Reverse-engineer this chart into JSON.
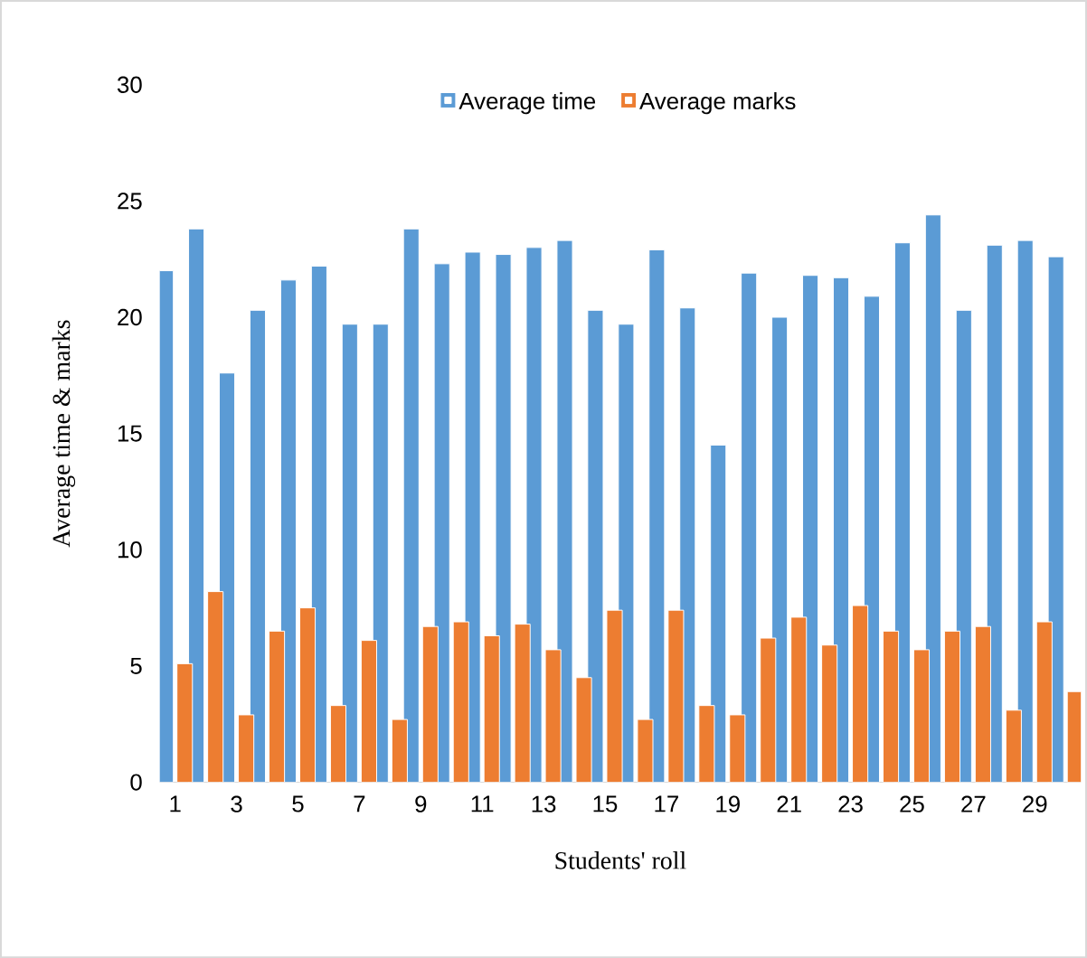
{
  "chart_data": {
    "type": "bar",
    "xlabel": "Students' roll",
    "ylabel": "Average time & marks",
    "categories": [
      "1",
      null,
      "3",
      null,
      "5",
      null,
      "7",
      null,
      "9",
      null,
      "11",
      null,
      "13",
      null,
      "15",
      null,
      "17",
      null,
      "19",
      null,
      "21",
      null,
      "23",
      null,
      "25",
      null,
      "27",
      null,
      "29",
      null
    ],
    "series": [
      {
        "name": "Average time",
        "color": "#5b9bd5",
        "values": [
          22.0,
          23.8,
          17.6,
          20.3,
          21.6,
          22.2,
          19.7,
          19.7,
          23.8,
          22.3,
          22.8,
          22.7,
          23.0,
          23.3,
          20.3,
          19.7,
          22.9,
          20.4,
          14.5,
          21.9,
          20.0,
          21.8,
          21.7,
          20.9,
          23.2,
          24.4,
          20.3,
          23.1,
          23.3,
          22.6
        ]
      },
      {
        "name": "Average marks",
        "color": "#ed7d31",
        "values": [
          5.1,
          8.2,
          2.9,
          6.5,
          7.5,
          3.3,
          6.1,
          2.7,
          6.7,
          6.9,
          6.3,
          6.8,
          5.7,
          4.5,
          7.4,
          2.7,
          7.4,
          3.3,
          2.9,
          6.2,
          7.1,
          5.9,
          7.6,
          6.5,
          5.7,
          6.5,
          6.7,
          3.1,
          6.9,
          3.9
        ]
      }
    ],
    "ylim": [
      0,
      30
    ],
    "yticks": [
      0,
      5,
      10,
      15,
      20,
      25,
      30
    ],
    "legend": "top"
  }
}
